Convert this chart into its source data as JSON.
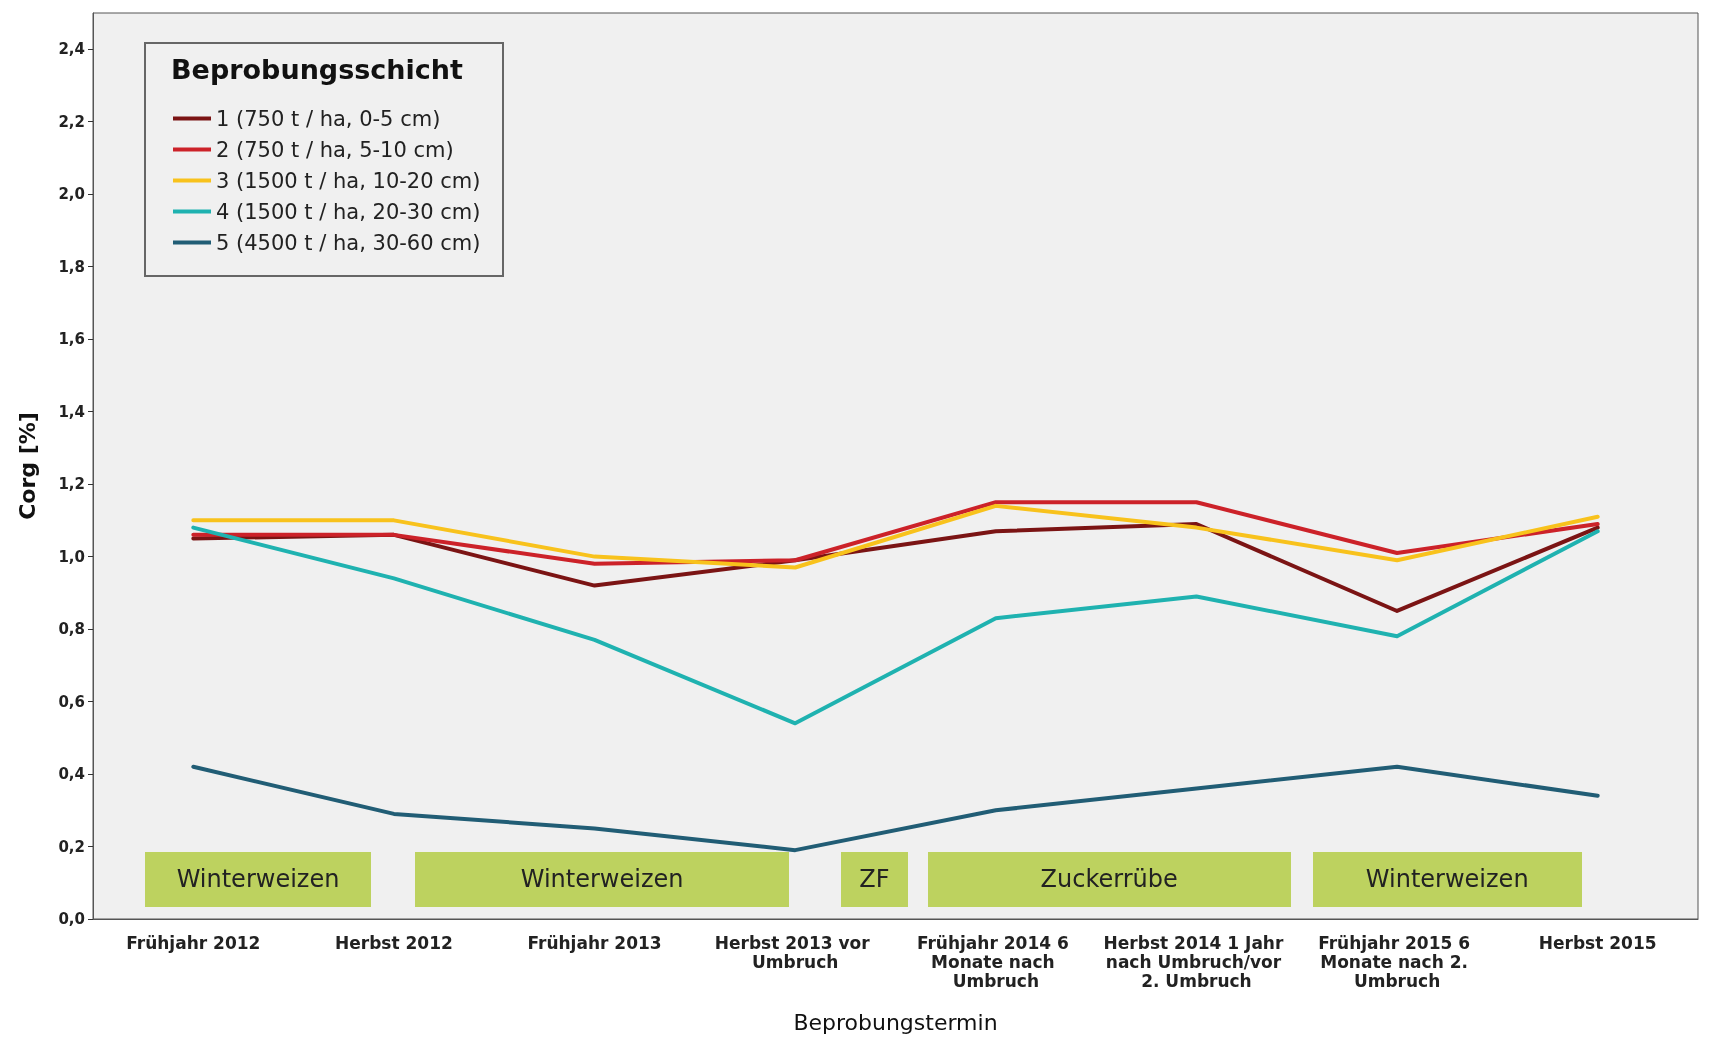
{
  "chart_data": {
    "type": "line",
    "xlabel": "Beprobungstermin",
    "ylabel": "Corg [%]",
    "legend_title": "Beprobungsschicht",
    "legend": "top left",
    "grid": false,
    "marker": "none",
    "line_style": "solid",
    "categories": [
      "Frühjahr 2012",
      "Herbst 2012",
      "Frühjahr 2013",
      "Herbst 2013 vor Umbruch",
      "Frühjahr 2014 6 Monate nach Umbruch",
      "Herbst 2014 1 Jahr nach Umbruch/vor 2. Umbruch",
      "Frühjahr 2015 6 Monate nach 2. Umbruch",
      "Herbst 2015"
    ],
    "ylim": [
      0,
      2.5
    ],
    "yticks": [
      {
        "value": 0,
        "label": "0,0"
      },
      {
        "value": 0.2,
        "label": "0,2"
      },
      {
        "value": 0.4,
        "label": "0,4"
      },
      {
        "value": 0.6,
        "label": "0,6"
      },
      {
        "value": 0.8,
        "label": "0,8"
      },
      {
        "value": 1.0,
        "label": "1,0"
      },
      {
        "value": 1.2,
        "label": "1,2"
      },
      {
        "value": 1.4,
        "label": "1,4"
      },
      {
        "value": 1.6,
        "label": "1,6"
      },
      {
        "value": 1.8,
        "label": "1,8"
      },
      {
        "value": 2.0,
        "label": "2,0"
      },
      {
        "value": 2.2,
        "label": "2,2"
      },
      {
        "value": 2.4,
        "label": "2,4"
      }
    ],
    "series": [
      {
        "name": "1 (750 t / ha, 0-5 cm)",
        "color": "#7b1414",
        "values": [
          1.05,
          1.06,
          0.92,
          0.99,
          1.07,
          1.09,
          0.85,
          1.08
        ]
      },
      {
        "name": "2 (750 t / ha, 5-10 cm)",
        "color": "#cc2229",
        "values": [
          1.06,
          1.06,
          0.98,
          0.99,
          1.15,
          1.15,
          1.01,
          1.09
        ]
      },
      {
        "name": "3 (1500 t / ha, 10-20 cm)",
        "color": "#f8c21c",
        "values": [
          1.1,
          1.1,
          1.0,
          0.97,
          1.14,
          1.08,
          0.99,
          1.11
        ]
      },
      {
        "name": "4 (1500 t / ha, 20-30 cm)",
        "color": "#1fb2b0",
        "values": [
          1.08,
          0.94,
          0.77,
          0.54,
          0.83,
          0.89,
          0.78,
          1.07
        ]
      },
      {
        "name": "5 (4500 t / ha, 30-60 cm)",
        "color": "#215d75",
        "values": [
          0.42,
          0.29,
          0.25,
          0.19,
          0.3,
          0.36,
          0.42,
          0.34
        ]
      }
    ],
    "annotations": [
      "Winterweizen",
      "Winterweizen",
      "ZF",
      "Zuckerrübe",
      "Winterweizen"
    ]
  }
}
